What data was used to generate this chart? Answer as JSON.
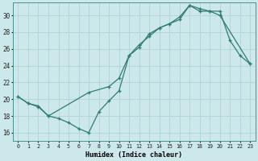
{
  "xlabel": "Humidex (Indice chaleur)",
  "background_color": "#cce8ea",
  "line_color": "#2e7d72",
  "xlim": [
    -0.5,
    23.5
  ],
  "ylim": [
    15.0,
    31.5
  ],
  "xticks": [
    0,
    1,
    2,
    3,
    4,
    5,
    6,
    7,
    8,
    9,
    10,
    11,
    12,
    13,
    14,
    15,
    16,
    17,
    18,
    19,
    20,
    21,
    22,
    23
  ],
  "yticks": [
    16,
    18,
    20,
    22,
    24,
    26,
    28,
    30
  ],
  "line1_x": [
    0,
    1,
    2,
    3,
    4,
    5,
    6,
    7,
    8,
    9,
    10,
    11,
    12,
    13,
    14,
    15,
    16,
    17,
    18,
    19,
    20,
    21,
    22,
    23
  ],
  "line1_y": [
    20.3,
    19.5,
    19.1,
    18.0,
    17.7,
    17.2,
    16.5,
    16.0,
    18.5,
    19.8,
    21.0,
    25.2,
    26.5,
    27.5,
    28.5,
    29.0,
    29.5,
    31.2,
    30.5,
    30.5,
    30.5,
    27.0,
    25.2,
    24.2
  ],
  "line2_x": [
    0,
    1,
    2,
    3,
    7,
    9,
    10,
    11,
    12,
    13,
    14,
    15,
    16,
    17,
    18,
    19,
    20,
    23
  ],
  "line2_y": [
    20.3,
    19.5,
    19.2,
    18.0,
    20.8,
    21.5,
    22.5,
    25.2,
    26.2,
    27.8,
    28.5,
    29.0,
    29.8,
    31.2,
    30.8,
    30.5,
    30.0,
    24.2
  ]
}
